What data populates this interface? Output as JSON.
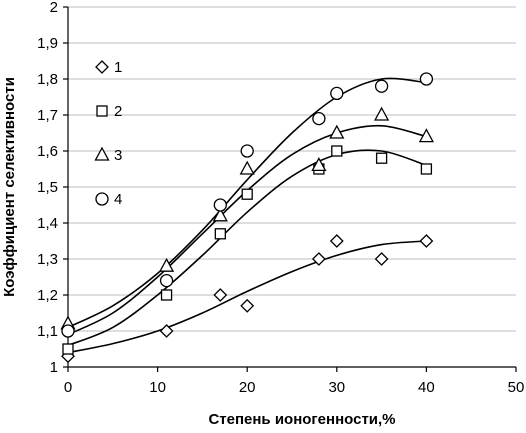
{
  "chart_data": {
    "type": "scatter",
    "title": "",
    "xlabel": "Степень ионогенности,%",
    "ylabel": "Коэффициент селективности",
    "xlim": [
      0,
      50
    ],
    "ylim": [
      1,
      2
    ],
    "x_ticks": [
      0,
      10,
      20,
      30,
      40,
      50
    ],
    "y_ticks": [
      1,
      1.1,
      1.2,
      1.3,
      1.4,
      1.5,
      1.6,
      1.7,
      1.8,
      1.9,
      2
    ],
    "y_tick_labels": [
      "1",
      "1,1",
      "1,2",
      "1,3",
      "1,4",
      "1,5",
      "1,6",
      "1,7",
      "1,8",
      "1,9",
      "2"
    ],
    "x_tick_labels": [
      "0",
      "10",
      "20",
      "30",
      "40",
      "50"
    ],
    "grid": "horizontal",
    "legend_position": "left",
    "series": [
      {
        "name": "1",
        "marker": "diamond",
        "x": [
          0,
          11,
          17,
          20,
          28,
          30,
          35,
          40
        ],
        "y": [
          1.03,
          1.1,
          1.2,
          1.17,
          1.3,
          1.35,
          1.3,
          1.35
        ],
        "trend": [
          [
            0,
            1.04
          ],
          [
            5,
            1.065
          ],
          [
            10,
            1.1
          ],
          [
            15,
            1.15
          ],
          [
            20,
            1.21
          ],
          [
            25,
            1.265
          ],
          [
            30,
            1.31
          ],
          [
            35,
            1.34
          ],
          [
            40,
            1.35
          ]
        ]
      },
      {
        "name": "2",
        "marker": "square",
        "x": [
          0,
          11,
          17,
          20,
          28,
          30,
          35,
          40
        ],
        "y": [
          1.05,
          1.2,
          1.37,
          1.48,
          1.55,
          1.6,
          1.58,
          1.55
        ],
        "trend": [
          [
            0,
            1.06
          ],
          [
            5,
            1.11
          ],
          [
            10,
            1.2
          ],
          [
            15,
            1.31
          ],
          [
            20,
            1.43
          ],
          [
            25,
            1.53
          ],
          [
            30,
            1.59
          ],
          [
            35,
            1.6
          ],
          [
            40,
            1.56
          ]
        ]
      },
      {
        "name": "3",
        "marker": "triangle",
        "x": [
          0,
          11,
          17,
          20,
          28,
          30,
          35,
          40
        ],
        "y": [
          1.12,
          1.28,
          1.42,
          1.55,
          1.56,
          1.65,
          1.7,
          1.64
        ],
        "trend": [
          [
            0,
            1.09
          ],
          [
            5,
            1.15
          ],
          [
            10,
            1.25
          ],
          [
            15,
            1.37
          ],
          [
            20,
            1.49
          ],
          [
            25,
            1.59
          ],
          [
            30,
            1.65
          ],
          [
            35,
            1.67
          ],
          [
            40,
            1.64
          ]
        ]
      },
      {
        "name": "4",
        "marker": "circle",
        "x": [
          0,
          11,
          17,
          20,
          28,
          30,
          35,
          40
        ],
        "y": [
          1.1,
          1.24,
          1.45,
          1.6,
          1.69,
          1.76,
          1.78,
          1.8
        ],
        "trend": [
          [
            0,
            1.11
          ],
          [
            5,
            1.17
          ],
          [
            10,
            1.26
          ],
          [
            15,
            1.38
          ],
          [
            20,
            1.52
          ],
          [
            25,
            1.65
          ],
          [
            30,
            1.75
          ],
          [
            35,
            1.8
          ],
          [
            40,
            1.79
          ]
        ]
      }
    ]
  }
}
